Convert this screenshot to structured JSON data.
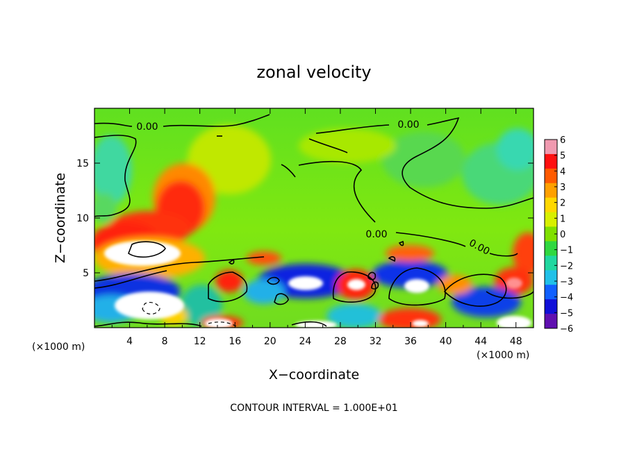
{
  "chart_data": {
    "type": "heatmap",
    "title": "zonal velocity",
    "xlabel": "X−coordinate",
    "ylabel": "Z−coordinate",
    "x_unit_left": "(×1000 m)",
    "x_unit_right": "(×1000 m)",
    "footer": "CONTOUR INTERVAL = 1.000E+01",
    "xlim": [
      0,
      50
    ],
    "ylim": [
      0,
      20
    ],
    "x_ticks": [
      "4",
      "8",
      "12",
      "16",
      "20",
      "24",
      "28",
      "32",
      "36",
      "40",
      "44",
      "48"
    ],
    "y_ticks": [
      "5",
      "10",
      "15"
    ],
    "contour_labels": [
      "0.00",
      "0.00",
      "0.00",
      "0.00"
    ],
    "colorbar": {
      "ticks": [
        "6",
        "5",
        "4",
        "3",
        "2",
        "1",
        "0",
        "−1",
        "−2",
        "−3",
        "−4",
        "−5",
        "−6"
      ],
      "range": [
        -6,
        6
      ],
      "colors": [
        "#f09ab0",
        "#ff1010",
        "#ff5a00",
        "#ffa000",
        "#ffd800",
        "#d8f000",
        "#80e000",
        "#30d840",
        "#20d8a0",
        "#20c0e8",
        "#1060ff",
        "#1010d8",
        "#6010b0"
      ]
    },
    "outside_range_color": "#ffffff"
  }
}
